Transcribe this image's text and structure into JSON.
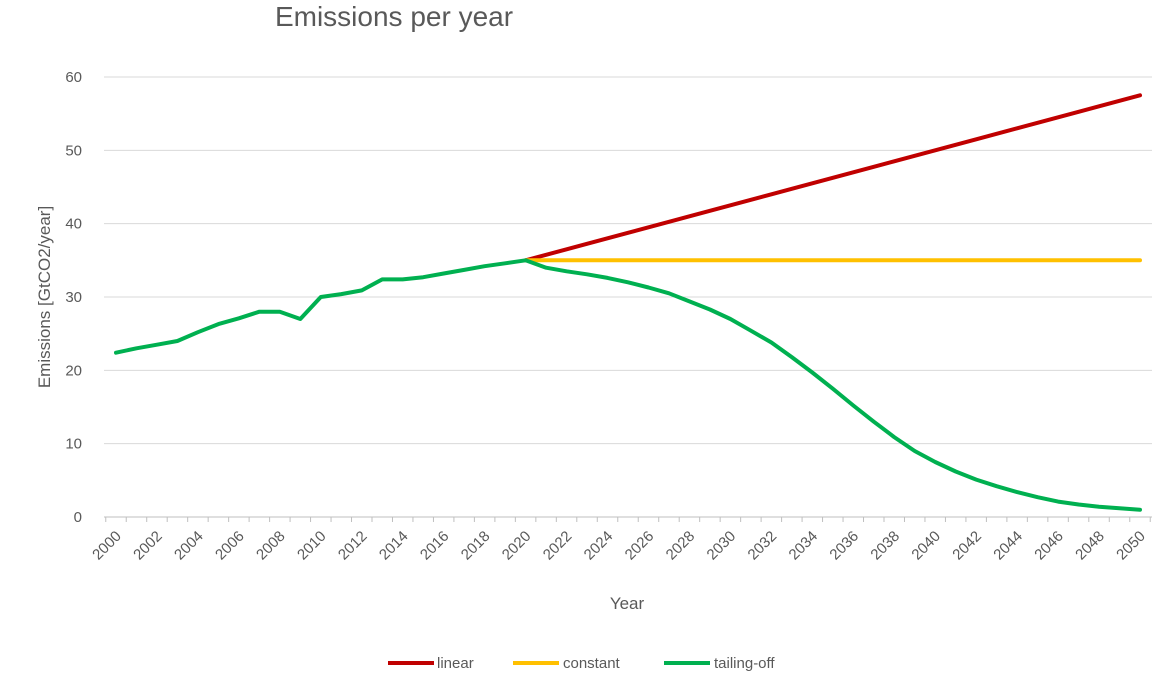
{
  "chart_data": {
    "type": "line",
    "title": "Emissions per year",
    "xlabel": "Year",
    "ylabel": "Emissions [GtCO2/year]",
    "ylim": [
      0,
      60
    ],
    "y_ticks": [
      0,
      10,
      20,
      30,
      40,
      50,
      60
    ],
    "grid": true,
    "legend_position": "bottom",
    "x": [
      2000,
      2001,
      2002,
      2003,
      2004,
      2005,
      2006,
      2007,
      2008,
      2009,
      2010,
      2011,
      2012,
      2013,
      2014,
      2015,
      2016,
      2017,
      2018,
      2019,
      2020,
      2021,
      2022,
      2023,
      2024,
      2025,
      2026,
      2027,
      2028,
      2029,
      2030,
      2031,
      2032,
      2033,
      2034,
      2035,
      2036,
      2037,
      2038,
      2039,
      2040,
      2041,
      2042,
      2043,
      2044,
      2045,
      2046,
      2047,
      2048,
      2049,
      2050
    ],
    "x_tick_labels": [
      "2000",
      "2002",
      "2004",
      "2006",
      "2008",
      "2010",
      "2012",
      "2014",
      "2016",
      "2018",
      "2020",
      "2022",
      "2024",
      "2026",
      "2028",
      "2030",
      "2032",
      "2034",
      "2036",
      "2038",
      "2040",
      "2042",
      "2044",
      "2046",
      "2048",
      "2050"
    ],
    "series": [
      {
        "name": "linear",
        "color": "#c00000",
        "values": [
          null,
          null,
          null,
          null,
          null,
          null,
          null,
          null,
          null,
          null,
          null,
          null,
          null,
          null,
          null,
          null,
          null,
          null,
          null,
          null,
          35,
          35.75,
          36.5,
          37.25,
          38,
          38.75,
          39.5,
          40.25,
          41,
          41.75,
          42.5,
          43.25,
          44,
          44.75,
          45.5,
          46.25,
          47,
          47.75,
          48.5,
          49.25,
          50,
          50.75,
          51.5,
          52.25,
          53,
          53.75,
          54.5,
          55.25,
          56,
          56.75,
          57.5
        ]
      },
      {
        "name": "constant",
        "color": "#ffc000",
        "values": [
          null,
          null,
          null,
          null,
          null,
          null,
          null,
          null,
          null,
          null,
          null,
          null,
          null,
          null,
          null,
          null,
          null,
          null,
          null,
          null,
          35,
          35,
          35,
          35,
          35,
          35,
          35,
          35,
          35,
          35,
          35,
          35,
          35,
          35,
          35,
          35,
          35,
          35,
          35,
          35,
          35,
          35,
          35,
          35,
          35,
          35,
          35,
          35,
          35,
          35,
          35
        ]
      },
      {
        "name": "tailing-off",
        "color": "#00b050",
        "values": [
          22.4,
          23,
          23.5,
          24,
          25.2,
          26.3,
          27.1,
          28,
          28,
          27,
          30,
          30.4,
          30.9,
          32.4,
          32.4,
          32.7,
          33.2,
          33.7,
          34.2,
          34.6,
          35,
          34,
          33.5,
          33.1,
          32.6,
          32,
          31.3,
          30.5,
          29.4,
          28.3,
          27,
          25.4,
          23.8,
          21.8,
          19.7,
          17.5,
          15.2,
          13,
          10.9,
          9,
          7.5,
          6.2,
          5.1,
          4.2,
          3.4,
          2.7,
          2.1,
          1.7,
          1.4,
          1.2,
          1
        ]
      }
    ]
  }
}
